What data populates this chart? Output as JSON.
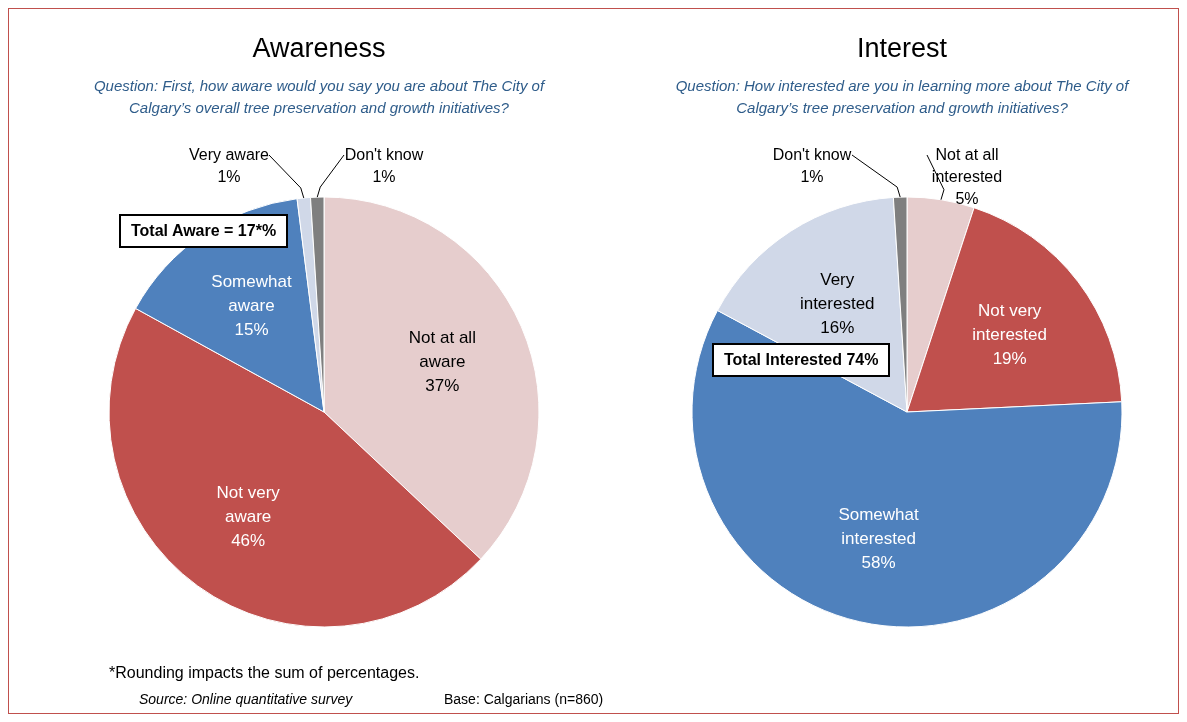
{
  "chart_data": [
    {
      "type": "pie",
      "title": "Awareness",
      "subtitle": "Question: First, how aware would you say you are about The City of Calgary’s overall tree preservation and growth initiatives?",
      "categories": [
        "Not at all aware",
        "Not very aware",
        "Somewhat aware",
        "Very aware",
        "Don't know"
      ],
      "values": [
        37,
        46,
        15,
        1,
        1
      ],
      "value_labels": [
        "37%",
        "46%",
        "15%",
        "1%",
        "1%"
      ],
      "colors": [
        "#e6cdcd",
        "#c0504d",
        "#4f81bd",
        "#d0d8e8",
        "#7f7f7f"
      ],
      "legend": false,
      "annotations": [
        "Total Aware = 17*%",
        "*Rounding impacts the sum of percentages.",
        "Source: Online quantitative survey",
        "Base: Calgarians (n=860)"
      ]
    },
    {
      "type": "pie",
      "title": "Interest",
      "subtitle": "Question: How interested are you in learning more about The City of Calgary’s tree preservation and growth initiatives?",
      "categories": [
        "Not at all interested",
        "Not very interested",
        "Somewhat interested",
        "Very interested",
        "Don't know"
      ],
      "values": [
        5,
        19,
        58,
        16,
        1
      ],
      "value_labels": [
        "5%",
        "19%",
        "58%",
        "16%",
        "1%"
      ],
      "colors": [
        "#e6cdcd",
        "#c0504d",
        "#4f81bd",
        "#d0d8e8",
        "#7f7f7f"
      ],
      "legend": false,
      "annotations": [
        "Total Interested 74%"
      ]
    }
  ]
}
